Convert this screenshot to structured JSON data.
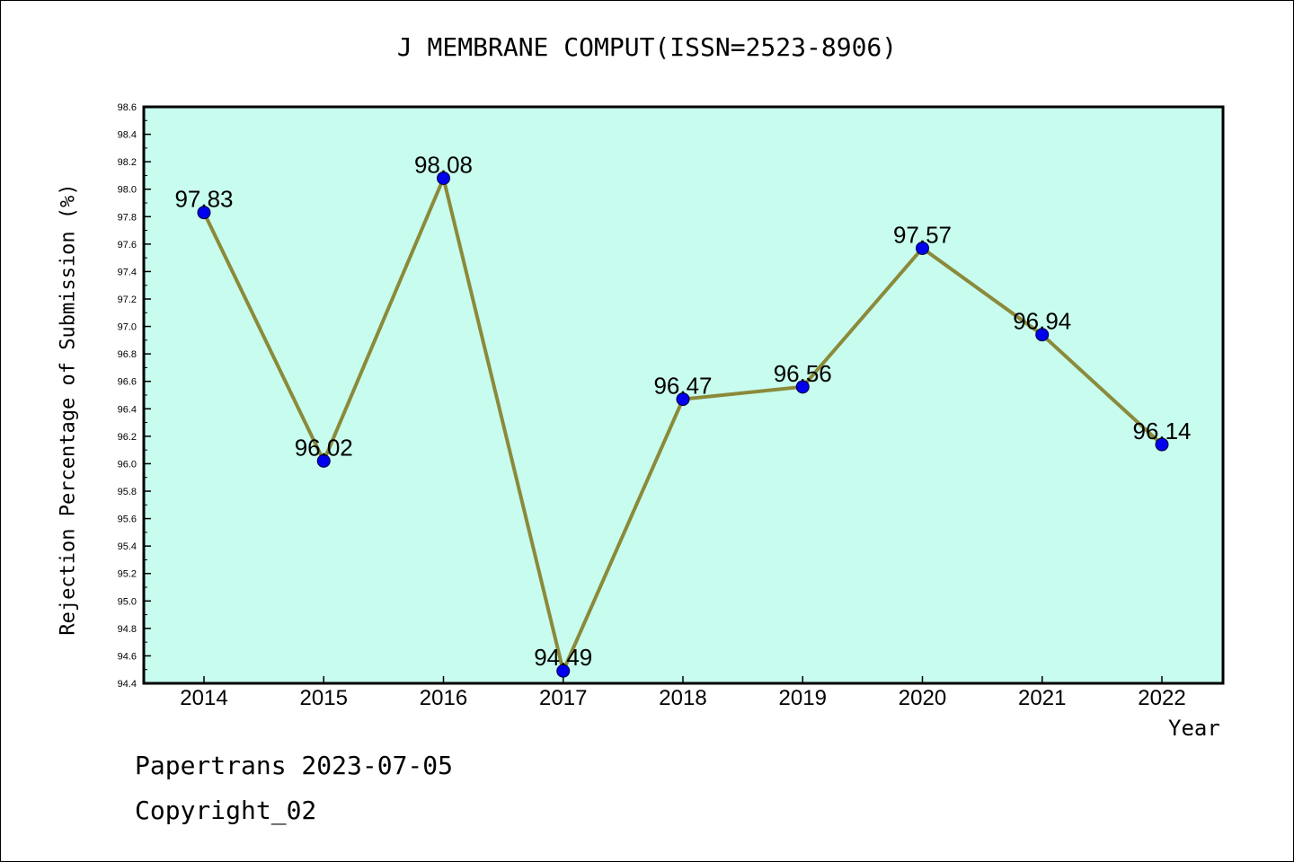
{
  "chart_data": {
    "type": "line",
    "title": "J MEMBRANE COMPUT(ISSN=2523-8906)",
    "xlabel": "Year",
    "ylabel": "Rejection Percentage of Submission (%)",
    "categories": [
      "2014",
      "2015",
      "2016",
      "2017",
      "2018",
      "2019",
      "2020",
      "2021",
      "2022"
    ],
    "values": [
      97.83,
      96.02,
      98.08,
      94.49,
      96.47,
      96.56,
      97.57,
      96.94,
      96.14
    ],
    "data_labels": [
      "97.83",
      "96.02",
      "98.08",
      "94.49",
      "96.47",
      "96.56",
      "97.57",
      "96.94",
      "96.14"
    ],
    "ylim": [
      94.4,
      98.6
    ],
    "y_ticks": [
      "94.4",
      "94.6",
      "94.8",
      "95.0",
      "95.2",
      "95.4",
      "95.6",
      "95.8",
      "96.0",
      "96.2",
      "96.4",
      "96.6",
      "96.8",
      "97.0",
      "97.2",
      "97.4",
      "97.6",
      "97.8",
      "98.0",
      "98.2",
      "98.4",
      "98.6"
    ],
    "grid": false,
    "colors": {
      "plot_background": "#c8fcee",
      "line": "#8b8a3a",
      "marker": "#0000ee"
    }
  },
  "footer": {
    "line1": "Papertrans 2023-07-05",
    "line2": "Copyright_02"
  }
}
